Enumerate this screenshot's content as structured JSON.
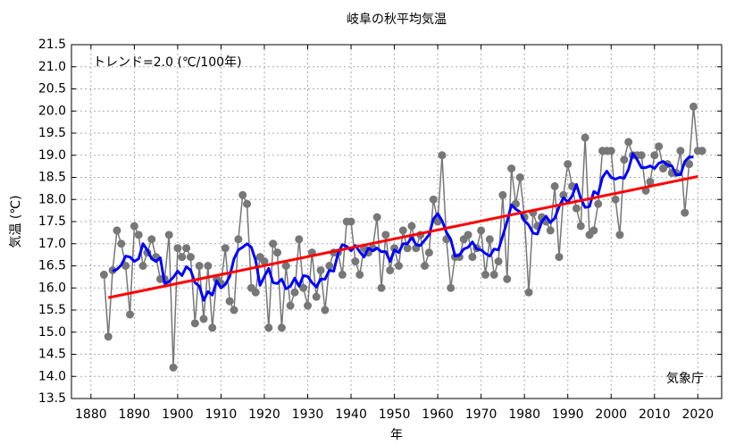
{
  "chart_data": {
    "type": "line",
    "title": "岐阜の秋平均気温",
    "x_label": "年",
    "y_label": "気温 (℃)",
    "annotations": [
      "トレンド=2.0 (℃/100年)",
      "気象庁"
    ],
    "xlim": [
      1875.5,
      2025.5
    ],
    "ylim": [
      13.5,
      21.5
    ],
    "xticks": [
      1880,
      1890,
      1900,
      1910,
      1920,
      1930,
      1940,
      1950,
      1960,
      1970,
      1980,
      1990,
      2000,
      2010,
      2020
    ],
    "yticks": [
      13.5,
      {
        "value": 14,
        "label": "14.0"
      },
      14.5,
      {
        "value": 15,
        "label": "15.0"
      },
      15.5,
      {
        "value": 16,
        "label": "16.0"
      },
      16.5,
      {
        "value": 17,
        "label": "17.0"
      },
      17.5,
      {
        "value": 18,
        "label": "18.0"
      },
      18.5,
      {
        "value": 19,
        "label": "19.0"
      },
      19.5,
      {
        "value": 20,
        "label": "20.0"
      },
      20.5,
      {
        "value": 21,
        "label": "21.0"
      },
      21.5
    ],
    "grid": true,
    "series": [
      {
        "color": "#777777",
        "markers": true,
        "width": 1.5,
        "x": [
          1883,
          1884,
          1885,
          1886,
          1887,
          1888,
          1889,
          1890,
          1891,
          1892,
          1893,
          1894,
          1895,
          1896,
          1897,
          1898,
          1899,
          1900,
          1901,
          1902,
          1903,
          1904,
          1905,
          1906,
          1907,
          1908,
          1909,
          1910,
          1911,
          1912,
          1913,
          1914,
          1915,
          1916,
          1917,
          1918,
          1919,
          1920,
          1921,
          1922,
          1923,
          1924,
          1925,
          1926,
          1927,
          1928,
          1929,
          1930,
          1931,
          1932,
          1933,
          1934,
          1935,
          1936,
          1937,
          1938,
          1939,
          1940,
          1941,
          1942,
          1943,
          1944,
          1945,
          1946,
          1947,
          1948,
          1949,
          1950,
          1951,
          1952,
          1953,
          1954,
          1955,
          1956,
          1957,
          1958,
          1959,
          1960,
          1961,
          1962,
          1963,
          1964,
          1965,
          1966,
          1967,
          1968,
          1969,
          1970,
          1971,
          1972,
          1973,
          1974,
          1975,
          1976,
          1977,
          1978,
          1979,
          1980,
          1981,
          1982,
          1983,
          1984,
          1985,
          1986,
          1987,
          1988,
          1989,
          1990,
          1991,
          1992,
          1993,
          1994,
          1995,
          1996,
          1997,
          1998,
          1999,
          2000,
          2001,
          2002,
          2003,
          2004,
          2005,
          2006,
          2007,
          2008,
          2009,
          2010,
          2011,
          2012,
          2013,
          2014,
          2015,
          2016,
          2017,
          2018,
          2019,
          2020,
          2021
        ],
        "values": [
          16.3,
          14.9,
          16.4,
          17.3,
          17.0,
          16.5,
          15.4,
          17.4,
          17.2,
          16.5,
          16.8,
          17.1,
          16.7,
          16.2,
          16.2,
          17.2,
          14.2,
          16.9,
          16.7,
          16.9,
          16.7,
          15.2,
          16.5,
          15.3,
          16.5,
          15.1,
          16.2,
          16.1,
          16.9,
          15.7,
          15.5,
          17.1,
          18.1,
          17.9,
          16.0,
          15.9,
          16.7,
          16.6,
          15.1,
          17.0,
          16.8,
          15.1,
          16.5,
          15.6,
          15.9,
          17.1,
          16.0,
          15.6,
          16.8,
          15.8,
          16.4,
          15.5,
          16.5,
          16.8,
          16.8,
          16.3,
          17.5,
          17.5,
          16.6,
          16.3,
          16.9,
          16.8,
          16.9,
          17.6,
          16.0,
          17.2,
          16.4,
          16.9,
          16.5,
          17.3,
          16.9,
          17.4,
          16.9,
          17.2,
          16.5,
          16.8,
          18.0,
          17.5,
          19.0,
          17.1,
          16.0,
          16.7,
          16.7,
          17.1,
          17.2,
          16.7,
          16.9,
          17.3,
          16.3,
          17.1,
          16.3,
          16.6,
          18.1,
          16.2,
          18.7,
          17.9,
          18.5,
          17.6,
          15.9,
          17.7,
          17.4,
          17.6,
          17.5,
          17.3,
          18.3,
          16.7,
          18.1,
          18.8,
          18.3,
          17.8,
          17.4,
          19.4,
          17.2,
          17.3,
          17.9,
          19.1,
          19.1,
          19.1,
          18.0,
          17.2,
          18.9,
          19.3,
          19.0,
          19.0,
          19.0,
          18.2,
          18.4,
          19.0,
          19.2,
          18.7,
          18.8,
          18.6,
          18.6,
          19.1,
          17.7,
          18.8,
          20.1,
          19.1,
          19.1
        ]
      },
      {
        "color": "#0000ff",
        "markers": false,
        "width": 3,
        "x": [
          1885,
          1886,
          1887,
          1888,
          1889,
          1890,
          1891,
          1892,
          1893,
          1894,
          1895,
          1896,
          1897,
          1898,
          1899,
          1900,
          1901,
          1902,
          1903,
          1904,
          1905,
          1906,
          1907,
          1908,
          1909,
          1910,
          1911,
          1912,
          1913,
          1914,
          1915,
          1916,
          1917,
          1918,
          1919,
          1920,
          1921,
          1922,
          1923,
          1924,
          1925,
          1926,
          1927,
          1928,
          1929,
          1930,
          1931,
          1932,
          1933,
          1934,
          1935,
          1936,
          1937,
          1938,
          1939,
          1940,
          1941,
          1942,
          1943,
          1944,
          1945,
          1946,
          1947,
          1948,
          1949,
          1950,
          1951,
          1952,
          1953,
          1954,
          1955,
          1956,
          1957,
          1958,
          1959,
          1960,
          1961,
          1962,
          1963,
          1964,
          1965,
          1966,
          1967,
          1968,
          1969,
          1970,
          1971,
          1972,
          1973,
          1974,
          1975,
          1976,
          1977,
          1978,
          1979,
          1980,
          1981,
          1982,
          1983,
          1984,
          1985,
          1986,
          1987,
          1988,
          1989,
          1990,
          1991,
          1992,
          1993,
          1994,
          1995,
          1996,
          1997,
          1998,
          1999,
          2000,
          2001,
          2002,
          2003,
          2004,
          2005,
          2006,
          2007,
          2008,
          2009,
          2010,
          2011,
          2012,
          2013,
          2014,
          2015,
          2016,
          2017,
          2018,
          2019
        ],
        "values": [
          16.38,
          16.42,
          16.52,
          16.72,
          16.7,
          16.6,
          16.66,
          17.0,
          16.86,
          16.66,
          16.6,
          16.68,
          16.1,
          16.14,
          16.24,
          16.38,
          16.28,
          16.48,
          16.4,
          16.12,
          16.04,
          15.72,
          15.92,
          15.84,
          16.16,
          16.0,
          16.08,
          16.26,
          16.66,
          16.86,
          16.92,
          17.0,
          16.92,
          16.62,
          16.06,
          16.26,
          16.44,
          16.12,
          16.1,
          16.2,
          15.98,
          16.04,
          16.22,
          16.04,
          16.28,
          16.26,
          16.12,
          16.02,
          16.2,
          16.2,
          16.4,
          16.38,
          16.78,
          16.98,
          16.94,
          16.84,
          16.96,
          16.82,
          16.7,
          16.9,
          16.84,
          16.9,
          16.82,
          16.82,
          16.6,
          16.86,
          16.8,
          17.0,
          17.0,
          17.14,
          16.98,
          16.96,
          17.08,
          17.2,
          17.56,
          17.68,
          17.52,
          17.26,
          17.1,
          16.72,
          16.74,
          16.88,
          16.92,
          17.04,
          16.88,
          16.86,
          16.78,
          16.72,
          16.88,
          16.86,
          17.18,
          17.5,
          17.88,
          17.78,
          17.72,
          17.52,
          17.42,
          17.24,
          17.22,
          17.5,
          17.62,
          17.48,
          17.58,
          17.84,
          18.04,
          17.94,
          18.08,
          18.34,
          18.02,
          17.82,
          17.84,
          18.18,
          18.12,
          18.5,
          18.64,
          18.5,
          18.46,
          18.5,
          18.48,
          18.68,
          19.04,
          18.9,
          18.72,
          18.72,
          18.76,
          18.7,
          18.82,
          18.86,
          18.78,
          18.76,
          18.56,
          18.56,
          18.86,
          18.96,
          18.96
        ]
      },
      {
        "color": "#ff0000",
        "markers": false,
        "width": 3,
        "x": [
          1884,
          2020
        ],
        "values": [
          15.78,
          18.52
        ]
      }
    ]
  }
}
